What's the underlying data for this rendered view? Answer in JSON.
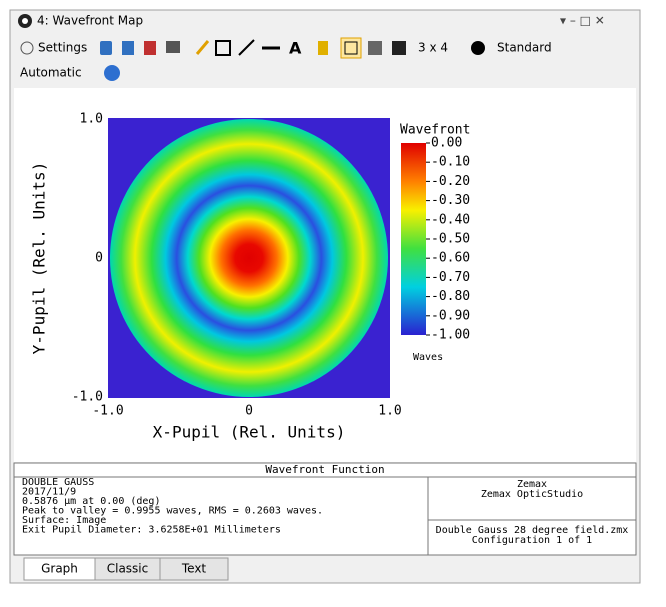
{
  "window": {
    "title": "4: Wavefront Map"
  },
  "toolbar": {
    "settings": "Settings",
    "layout": "3 x 4",
    "style": "Standard",
    "mode": "Automatic"
  },
  "plot": {
    "x_label": "X-Pupil (Rel. Units)",
    "y_label": "Y-Pupil (Rel. Units)",
    "x_ticks": [
      "-1.0",
      "0",
      "1.0"
    ],
    "y_ticks": [
      "1.0",
      "0",
      "-1.0"
    ],
    "colorbar": {
      "title": "Wavefront",
      "ticks": [
        "0.00",
        "-0.10",
        "-0.20",
        "-0.30",
        "-0.40",
        "-0.50",
        "-0.60",
        "-0.70",
        "-0.80",
        "-0.90",
        "-1.00"
      ],
      "unit": "Waves"
    }
  },
  "info": {
    "title": "Wavefront Function",
    "left": [
      "DOUBLE GAUSS",
      "2017/11/9",
      "0.5876 µm at 0.00 (deg)",
      "Peak to valley = 0.9955 waves, RMS = 0.2603 waves.",
      "Surface: Image",
      "Exit Pupil Diameter: 3.6258E+01 Millimeters"
    ],
    "right_top": [
      "Zemax",
      "Zemax OpticStudio"
    ],
    "right_bottom": [
      "Double Gauss 28 degree field.zmx",
      "Configuration 1 of 1"
    ]
  },
  "tabs": [
    "Graph",
    "Classic",
    "Text"
  ]
}
